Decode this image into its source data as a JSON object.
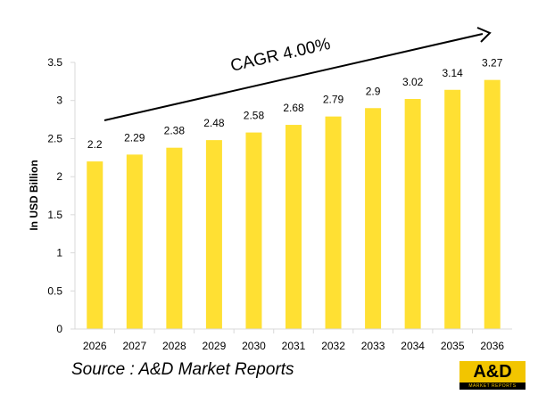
{
  "chart_data": {
    "type": "bar",
    "categories": [
      "2026",
      "2027",
      "2028",
      "2029",
      "2030",
      "2031",
      "2032",
      "2033",
      "2034",
      "2035",
      "2036"
    ],
    "values": [
      2.2,
      2.29,
      2.38,
      2.48,
      2.58,
      2.68,
      2.79,
      2.9,
      3.02,
      3.14,
      3.27
    ],
    "data_labels": [
      "2.2",
      "2.29",
      "2.38",
      "2.48",
      "2.58",
      "2.68",
      "2.79",
      "2.9",
      "3.02",
      "3.14",
      "3.27"
    ],
    "ylabel": "In USD Billion",
    "xlabel": "",
    "ylim": [
      0,
      3.5
    ],
    "yticks": [
      "0",
      "0.5",
      "1",
      "1.5",
      "2",
      "2.5",
      "3",
      "3.5"
    ],
    "ytick_values": [
      0,
      0.5,
      1,
      1.5,
      2,
      2.5,
      3,
      3.5
    ],
    "bar_color": "#ffe033",
    "annotation": "CAGR 4.00%",
    "grid": false
  },
  "source": "Source : A&D Market Reports",
  "logo": {
    "text": "A&D",
    "subtext": "MARKET REPORTS",
    "color": "#f2c500"
  }
}
